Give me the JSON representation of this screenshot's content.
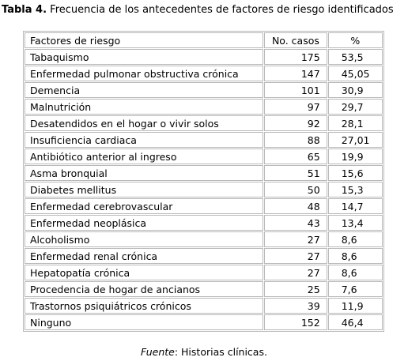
{
  "caption": {
    "label": "Tabla 4.",
    "text": "Frecuencia de los antecedentes de factores de riesgo identificados"
  },
  "table": {
    "headers": [
      "Factores de riesgo",
      "No. casos",
      "%"
    ],
    "rows": [
      [
        "Tabaquismo",
        "175",
        "53,5"
      ],
      [
        "Enfermedad pulmonar obstructiva crónica",
        "147",
        "45,05"
      ],
      [
        "Demencia",
        "101",
        "30,9"
      ],
      [
        "Malnutrición",
        "97",
        "29,7"
      ],
      [
        "Desatendidos en el hogar o vivir solos",
        "92",
        "28,1"
      ],
      [
        "Insuficiencia cardiaca",
        "88",
        "27,01"
      ],
      [
        "Antibiótico anterior al ingreso",
        "65",
        "19,9"
      ],
      [
        "Asma bronquial",
        "51",
        "15,6"
      ],
      [
        "Diabetes mellitus",
        "50",
        "15,3"
      ],
      [
        "Enfermedad cerebrovascular",
        "48",
        "14,7"
      ],
      [
        "Enfermedad neoplásica",
        "43",
        "13,4"
      ],
      [
        "Alcoholismo",
        "27",
        "8,6"
      ],
      [
        "Enfermedad renal crónica",
        "27",
        "8,6"
      ],
      [
        "Hepatopatía crónica",
        "27",
        "8,6"
      ],
      [
        "Procedencia de hogar de ancianos",
        "25",
        "7,6"
      ],
      [
        "Trastornos psiquiátricos crónicos",
        "39",
        "11,9"
      ],
      [
        "Ninguno",
        "152",
        "46,4"
      ]
    ]
  },
  "source": {
    "label": "Fuente",
    "text": ": Historias clínicas."
  }
}
